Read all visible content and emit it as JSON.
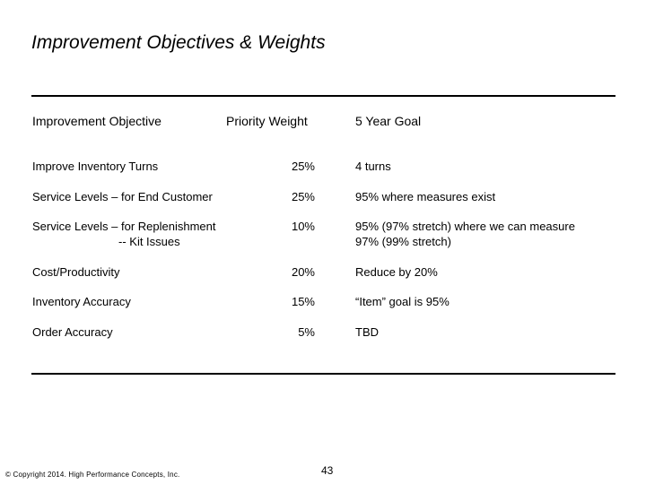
{
  "slide": {
    "title": "Improvement Objectives & Weights",
    "headers": {
      "objective": "Improvement Objective",
      "weight": "Priority Weight",
      "goal": "5 Year Goal"
    },
    "rows": [
      {
        "objective": "Improve Inventory Turns",
        "objective_l2": "",
        "weight": "25%",
        "goal": "4 turns",
        "goal_l2": ""
      },
      {
        "objective": "Service Levels – for End Customer",
        "objective_l2": "",
        "weight": "25%",
        "goal": "95% where measures exist",
        "goal_l2": ""
      },
      {
        "objective": "Service Levels – for Replenishment",
        "objective_l2": "-- Kit Issues",
        "weight": "10%",
        "goal": "95% (97% stretch) where we can measure",
        "goal_l2": "97% (99% stretch)"
      },
      {
        "objective": "Cost/Productivity",
        "objective_l2": "",
        "weight": "20%",
        "goal": "Reduce by 20%",
        "goal_l2": ""
      },
      {
        "objective": "Inventory Accuracy",
        "objective_l2": "",
        "weight": "15%",
        "goal": "“Item” goal is 95%",
        "goal_l2": ""
      },
      {
        "objective": "Order Accuracy",
        "objective_l2": "",
        "weight": "5%",
        "goal": "TBD",
        "goal_l2": ""
      }
    ],
    "copyright": "© Copyright 2014.  High Performance Concepts, Inc.",
    "page_number": "43"
  }
}
